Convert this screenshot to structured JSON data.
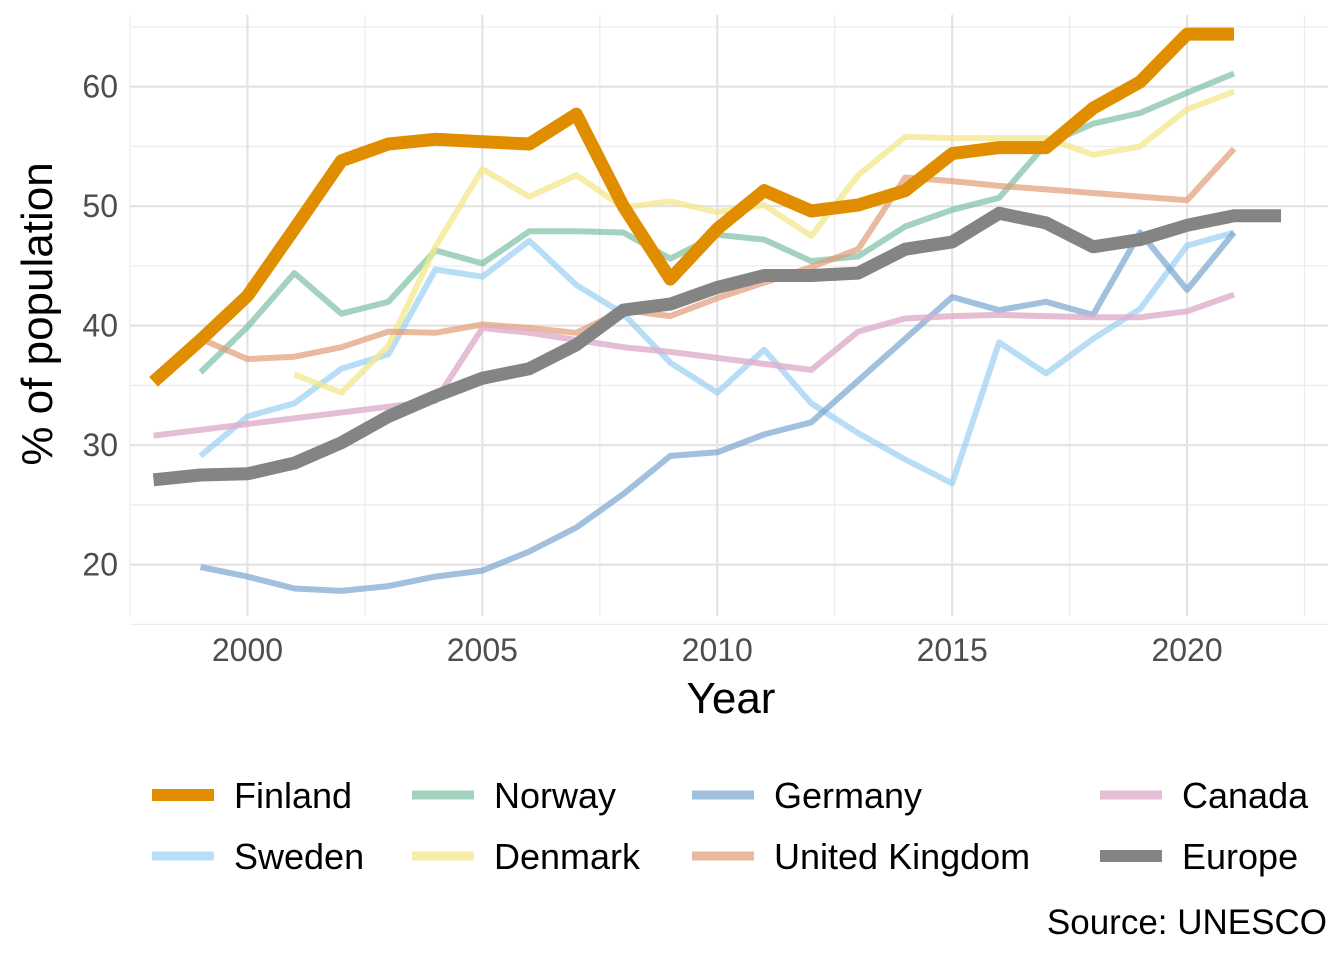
{
  "chart_data": {
    "type": "line",
    "xlabel": "Year",
    "ylabel": "% of population",
    "caption": "Source: UNESCO",
    "xlim": [
      1997.5,
      2023
    ],
    "ylim": [
      15.7,
      66
    ],
    "xticks": [
      2000,
      2005,
      2010,
      2015,
      2020
    ],
    "yticks": [
      20,
      30,
      40,
      50,
      60
    ],
    "grid": true,
    "legend_position": "bottom",
    "series": [
      {
        "name": "Finland",
        "color": "#E08E00",
        "opacity": 1.0,
        "width": 13,
        "x": [
          1998,
          1999,
          2000,
          2001,
          2002,
          2003,
          2004,
          2005,
          2006,
          2007,
          2008,
          2009,
          2010,
          2011,
          2012,
          2013,
          2014,
          2015,
          2016,
          2017,
          2018,
          2019,
          2020,
          2021
        ],
        "y": [
          35.3,
          38.8,
          42.5,
          48.1,
          53.8,
          55.2,
          55.6,
          55.4,
          55.2,
          57.7,
          50.0,
          43.9,
          48.1,
          51.3,
          49.6,
          50.1,
          51.3,
          54.4,
          54.9,
          54.9,
          58.2,
          60.4,
          64.4,
          64.4
        ]
      },
      {
        "name": "Sweden",
        "color": "#92CDF2",
        "opacity": 0.65,
        "width": 6,
        "x": [
          1999,
          2000,
          2001,
          2002,
          2003,
          2004,
          2005,
          2006,
          2007,
          2008,
          2009,
          2010,
          2011,
          2012,
          2013,
          2014,
          2015,
          2016,
          2017,
          2018,
          2019,
          2020,
          2021
        ],
        "y": [
          29.1,
          32.4,
          33.5,
          36.4,
          37.6,
          44.7,
          44.1,
          47.1,
          43.4,
          41.0,
          36.9,
          34.4,
          38.0,
          33.5,
          31.0,
          28.8,
          26.8,
          38.6,
          36.0,
          38.9,
          41.4,
          46.7,
          47.8
        ]
      },
      {
        "name": "Norway",
        "color": "#7CC1A2",
        "opacity": 0.7,
        "width": 6,
        "x": [
          1999,
          2000,
          2001,
          2002,
          2003,
          2004,
          2005,
          2006,
          2007,
          2008,
          2009,
          2010,
          2011,
          2012,
          2013,
          2014,
          2015,
          2016,
          2017,
          2018,
          2019,
          2020,
          2021
        ],
        "y": [
          36.1,
          39.9,
          44.4,
          41.0,
          42.0,
          46.3,
          45.2,
          47.9,
          47.9,
          47.8,
          45.6,
          47.6,
          47.2,
          45.4,
          45.8,
          48.3,
          49.7,
          50.7,
          55.2,
          56.9,
          57.8,
          59.5,
          61.1
        ]
      },
      {
        "name": "Denmark",
        "color": "#F3E78C",
        "opacity": 0.75,
        "width": 6,
        "x": [
          2001,
          2002,
          2003,
          2004,
          2005,
          2006,
          2007,
          2008,
          2009,
          2010,
          2011,
          2012,
          2013,
          2014,
          2015,
          2016,
          2017,
          2018,
          2019,
          2020,
          2021
        ],
        "y": [
          35.9,
          34.4,
          38.3,
          46.6,
          53.1,
          50.8,
          52.6,
          49.9,
          50.4,
          49.5,
          50.1,
          47.5,
          52.6,
          55.8,
          55.7,
          55.7,
          55.7,
          54.3,
          55.0,
          58.1,
          59.6
        ]
      },
      {
        "name": "Germany",
        "color": "#78A5CF",
        "opacity": 0.7,
        "width": 6,
        "x": [
          1999,
          2000,
          2001,
          2002,
          2003,
          2004,
          2005,
          2006,
          2007,
          2008,
          2009,
          2010,
          2011,
          2012,
          2013,
          2014,
          2015,
          2016,
          2017,
          2018,
          2019,
          2020,
          2021
        ],
        "y": [
          19.8,
          19.0,
          18.0,
          17.8,
          18.2,
          19.0,
          19.5,
          21.1,
          23.1,
          25.9,
          29.1,
          29.4,
          30.9,
          31.9,
          35.4,
          38.9,
          42.4,
          41.3,
          42.0,
          40.9,
          47.8,
          43.0,
          47.8
        ]
      },
      {
        "name": "United Kingdom",
        "color": "#E09B77",
        "opacity": 0.7,
        "width": 6,
        "x": [
          1999,
          2000,
          2001,
          2002,
          2003,
          2004,
          2005,
          2006,
          2007,
          2008,
          2009,
          2010,
          2011,
          2012,
          2013,
          2014,
          2015,
          2016,
          2017,
          2018,
          2019,
          2020,
          2021
        ],
        "y": [
          38.9,
          37.2,
          37.4,
          38.2,
          39.5,
          39.4,
          40.1,
          39.8,
          39.4,
          41.3,
          40.8,
          42.3,
          43.6,
          44.9,
          46.4,
          52.4,
          52.1,
          51.7,
          51.4,
          51.1,
          50.8,
          50.5,
          54.8
        ]
      },
      {
        "name": "Canada",
        "color": "#DFADCB",
        "opacity": 0.8,
        "width": 6,
        "x": [
          1998,
          2004,
          2005,
          2006,
          2007,
          2008,
          2009,
          2010,
          2011,
          2012,
          2013,
          2014,
          2015,
          2016,
          2017,
          2018,
          2019,
          2020,
          2021
        ],
        "y": [
          30.8,
          33.7,
          39.8,
          39.4,
          38.8,
          38.2,
          37.8,
          37.3,
          36.8,
          36.3,
          39.5,
          40.6,
          40.8,
          40.9,
          40.8,
          40.7,
          40.7,
          41.2,
          42.6
        ]
      },
      {
        "name": "Europe",
        "color": "#848484",
        "opacity": 1.0,
        "width": 13,
        "x": [
          1998,
          1999,
          2000,
          2001,
          2002,
          2003,
          2004,
          2005,
          2006,
          2007,
          2008,
          2009,
          2010,
          2011,
          2012,
          2013,
          2014,
          2015,
          2016,
          2017,
          2018,
          2019,
          2020,
          2021,
          2022
        ],
        "y": [
          27.1,
          27.5,
          27.6,
          28.5,
          30.2,
          32.4,
          34.1,
          35.6,
          36.4,
          38.4,
          41.3,
          41.8,
          43.2,
          44.2,
          44.2,
          44.4,
          46.4,
          47.0,
          49.4,
          48.6,
          46.6,
          47.2,
          48.4,
          49.2,
          49.2
        ]
      }
    ],
    "legend": {
      "columns": [
        [
          "Finland",
          "Sweden"
        ],
        [
          "Norway",
          "Denmark"
        ],
        [
          "Germany",
          "United Kingdom"
        ],
        [
          "Canada",
          "Europe"
        ]
      ]
    }
  }
}
